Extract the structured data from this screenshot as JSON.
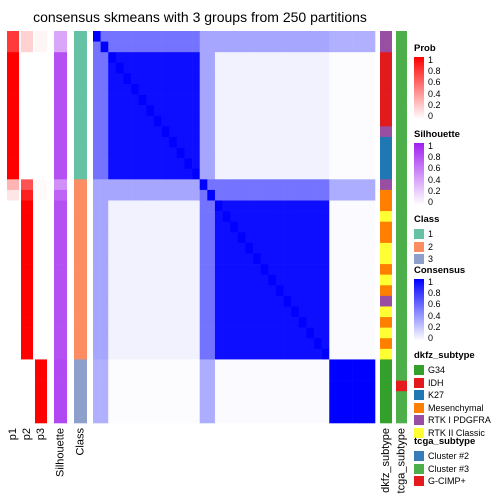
{
  "title": "consensus skmeans with 3 groups from 250 partitions",
  "annotation_labels": {
    "p1": "p1",
    "p2": "p2",
    "p3": "p3",
    "silhouette": "Silhouette",
    "class": "Class",
    "dkfz": "dkfz_subtype",
    "tcga": "tcga_subtype"
  },
  "legends": {
    "prob": {
      "title": "Prob",
      "ticks": [
        "1",
        "0.8",
        "0.6",
        "0.4",
        "0.2",
        "0"
      ],
      "colors": [
        "#ff0000",
        "#ffffff"
      ]
    },
    "silhouette": {
      "title": "Silhouette",
      "ticks": [
        "1",
        "0.8",
        "0.6",
        "0.4",
        "0.2",
        "0"
      ],
      "colors": [
        "#a020f0",
        "#ffffff"
      ]
    },
    "class": {
      "title": "Class",
      "items": [
        {
          "label": "1",
          "color": "#66c2a5"
        },
        {
          "label": "2",
          "color": "#fc8d62"
        },
        {
          "label": "3",
          "color": "#8da0cb"
        }
      ]
    },
    "consensus": {
      "title": "Consensus",
      "ticks": [
        "1",
        "0.8",
        "0.6",
        "0.4",
        "0.2",
        "0"
      ],
      "colors": [
        "#0000ff",
        "#ffffff"
      ]
    },
    "dkfz": {
      "title": "dkfz_subtype",
      "items": [
        {
          "label": "G34",
          "color": "#33a02c"
        },
        {
          "label": "IDH",
          "color": "#e31a1c"
        },
        {
          "label": "K27",
          "color": "#1f78b4"
        },
        {
          "label": "Mesenchymal",
          "color": "#ff7f00"
        },
        {
          "label": "RTK I PDGFRA",
          "color": "#984ea3"
        },
        {
          "label": "RTK II Classic",
          "color": "#ffff33"
        }
      ]
    },
    "tcga": {
      "title": "tcga_subtype",
      "items": [
        {
          "label": "Cluster #2",
          "color": "#377eb8"
        },
        {
          "label": "Cluster #3",
          "color": "#4daf4a"
        },
        {
          "label": "G-CIMP+",
          "color": "#e41a1c"
        }
      ]
    }
  },
  "chart_data": {
    "type": "heatmap",
    "samples_per_group": {
      "1": 14,
      "2": 17,
      "3": 6
    },
    "groups": [
      {
        "class": "1",
        "size": 14,
        "mean_consensus_within": 0.95,
        "p1": [
          0.78,
          0.78,
          1,
          1,
          1,
          1,
          1,
          1,
          1,
          1,
          1,
          1,
          1,
          1
        ],
        "p2": [
          0.18,
          0.18,
          0,
          0,
          0,
          0,
          0,
          0,
          0,
          0,
          0,
          0,
          0,
          0
        ],
        "p3": [
          0.04,
          0.04,
          0,
          0,
          0,
          0,
          0,
          0,
          0,
          0,
          0,
          0,
          0,
          0
        ],
        "silhouette": [
          0.4,
          0.4,
          0.78,
          0.78,
          0.78,
          0.78,
          0.78,
          0.78,
          0.78,
          0.78,
          0.78,
          0.78,
          0.78,
          0.78
        ],
        "dkfz_subtype": [
          "RTK I PDGFRA",
          "RTK I PDGFRA",
          "IDH",
          "IDH",
          "IDH",
          "IDH",
          "IDH",
          "IDH",
          "IDH",
          "RTK I PDGFRA",
          "K27",
          "K27",
          "K27",
          "K27"
        ],
        "tcga_subtype": [
          "Cluster #3",
          "Cluster #3",
          "Cluster #3",
          "Cluster #3",
          "Cluster #3",
          "Cluster #3",
          "Cluster #3",
          "Cluster #3",
          "Cluster #3",
          "Cluster #3",
          "Cluster #3",
          "Cluster #3",
          "Cluster #3",
          "Cluster #3"
        ]
      },
      {
        "class": "2",
        "size": 17,
        "mean_consensus_within": 0.95,
        "p1": [
          0.3,
          0.1,
          0,
          0,
          0,
          0,
          0,
          0,
          0,
          0,
          0,
          0,
          0,
          0,
          0,
          0,
          0
        ],
        "p2": [
          0.68,
          0.88,
          1,
          1,
          1,
          1,
          1,
          1,
          1,
          1,
          1,
          1,
          1,
          1,
          1,
          1,
          1
        ],
        "p3": [
          0.02,
          0.02,
          0,
          0,
          0,
          0,
          0,
          0,
          0,
          0,
          0,
          0,
          0,
          0,
          0,
          0,
          0
        ],
        "silhouette": [
          0.5,
          0.7,
          0.78,
          0.78,
          0.78,
          0.78,
          0.78,
          0.78,
          0.78,
          0.78,
          0.78,
          0.78,
          0.78,
          0.78,
          0.78,
          0.78,
          0.78
        ],
        "dkfz_subtype": [
          "RTK I PDGFRA",
          "Mesenchymal",
          "Mesenchymal",
          "RTK II Classic",
          "Mesenchymal",
          "Mesenchymal",
          "RTK II Classic",
          "RTK II Classic",
          "Mesenchymal",
          "RTK II Classic",
          "Mesenchymal",
          "RTK I PDGFRA",
          "RTK II Classic",
          "Mesenchymal",
          "RTK II Classic",
          "Mesenchymal",
          "RTK II Classic"
        ],
        "tcga_subtype": [
          "Cluster #3",
          "Cluster #3",
          "Cluster #3",
          "Cluster #3",
          "Cluster #3",
          "Cluster #3",
          "Cluster #3",
          "Cluster #3",
          "Cluster #3",
          "Cluster #3",
          "Cluster #3",
          "Cluster #3",
          "Cluster #3",
          "Cluster #3",
          "Cluster #3",
          "Cluster #3",
          "Cluster #3"
        ]
      },
      {
        "class": "3",
        "size": 6,
        "mean_consensus_within": 1.0,
        "p1": [
          0,
          0,
          0,
          0,
          0,
          0
        ],
        "p2": [
          0,
          0,
          0,
          0,
          0,
          0
        ],
        "p3": [
          1,
          1,
          1,
          1,
          1,
          1
        ],
        "silhouette": [
          0.82,
          0.82,
          0.82,
          0.82,
          0.82,
          0.82
        ],
        "dkfz_subtype": [
          "G34",
          "G34",
          "G34",
          "G34",
          "G34",
          "G34"
        ],
        "tcga_subtype": [
          "Cluster #3",
          "Cluster #3",
          "G-CIMP+",
          "Cluster #3",
          "Cluster #3",
          "Cluster #3"
        ]
      }
    ],
    "between_group_consensus": {
      "1-2": 0.05,
      "1-3": 0.01,
      "2-3": 0.02
    }
  }
}
